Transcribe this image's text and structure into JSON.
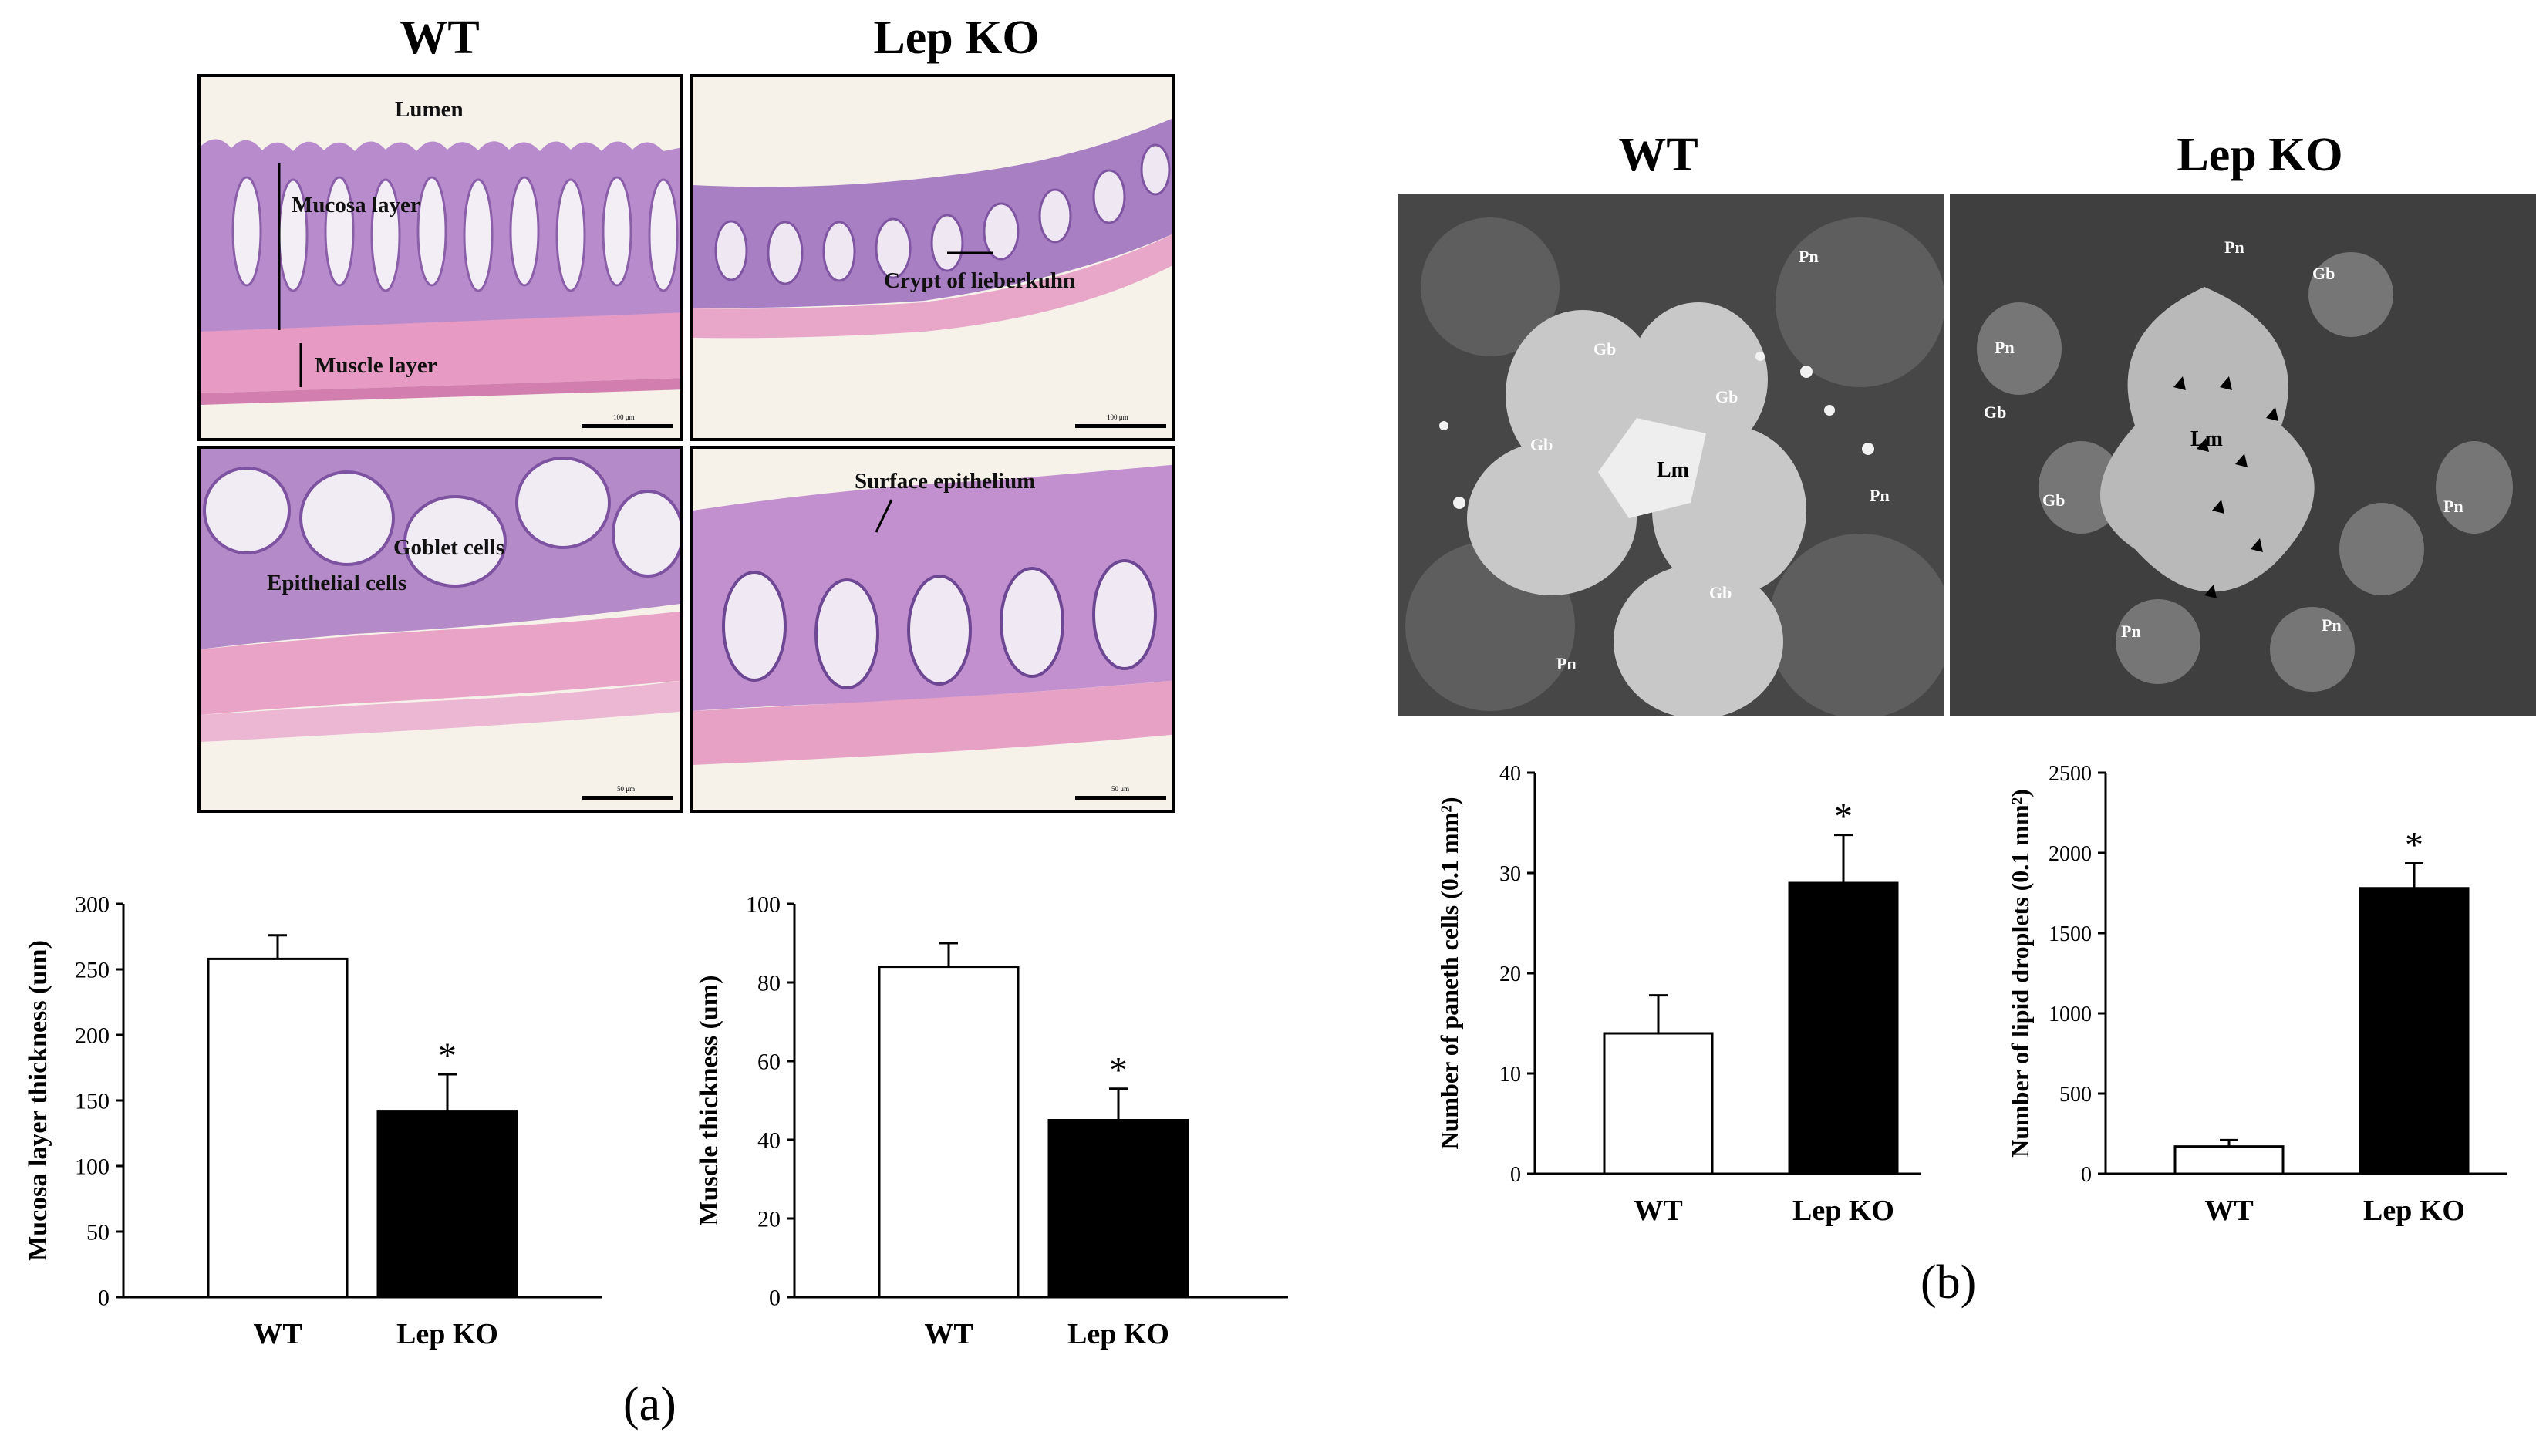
{
  "panel_a": {
    "letter": "(a)",
    "headings": {
      "wt": "WT",
      "lep": "Lep KO"
    },
    "micrographs": {
      "wt_top": {
        "labels": [
          "Lumen",
          "Mucosa layer",
          "Muscle layer"
        ],
        "scale": "100 μm"
      },
      "lep_top": {
        "labels": [
          "Crypt of lieberkuhn"
        ],
        "scale": "100 μm"
      },
      "wt_bottom": {
        "labels": [
          "Goblet cells",
          "Epithelial cells"
        ],
        "scale": "50 μm"
      },
      "lep_bottom": {
        "labels": [
          "Surface epithelium"
        ],
        "scale": "50 μm"
      }
    }
  },
  "panel_b": {
    "letter": "(b)",
    "headings": {
      "wt": "WT",
      "lep": "Lep KO"
    },
    "em_labels": {
      "wt": [
        "Pn",
        "Gb",
        "Gb",
        "Gb",
        "Lm",
        "Pn",
        "Gb",
        "Pn"
      ],
      "lep": [
        "Pn",
        "Gb",
        "Pn",
        "Gb",
        "Lm",
        "Gb",
        "Pn",
        "Pn",
        "Pn"
      ]
    }
  },
  "colors": {
    "wt_bar": "#ffffff",
    "lep_bar": "#000000",
    "he_bg": "#f6f2ea",
    "he_stain": "#9b6fb8",
    "em_bg": "#4a4a4a"
  },
  "chart_data": [
    {
      "type": "bar",
      "categories": [
        "WT",
        "Lep KO"
      ],
      "values": [
        258,
        142
      ],
      "errors": [
        18,
        28
      ],
      "significance": [
        "",
        "*"
      ],
      "ylabel": "Mucosa layer thickness (um)",
      "ylim": [
        0,
        300
      ],
      "yticks": [
        0,
        50,
        100,
        150,
        200,
        250,
        300
      ]
    },
    {
      "type": "bar",
      "categories": [
        "WT",
        "Lep KO"
      ],
      "values": [
        84,
        45
      ],
      "errors": [
        6,
        8
      ],
      "significance": [
        "",
        "*"
      ],
      "ylabel": "Muscle thickness (um)",
      "ylim": [
        0,
        100
      ],
      "yticks": [
        0,
        20,
        40,
        60,
        80,
        100
      ]
    },
    {
      "type": "bar",
      "categories": [
        "WT",
        "Lep KO"
      ],
      "values": [
        14,
        29
      ],
      "errors": [
        3.8,
        4.8
      ],
      "significance": [
        "",
        "*"
      ],
      "ylabel": "Number of paneth cells (0.1 mm²)",
      "ylim": [
        0,
        40
      ],
      "yticks": [
        0,
        10,
        20,
        30,
        40
      ]
    },
    {
      "type": "bar",
      "categories": [
        "WT",
        "Lep KO"
      ],
      "values": [
        170,
        1780
      ],
      "errors": [
        40,
        155
      ],
      "significance": [
        "",
        "*"
      ],
      "ylabel": "Number of lipid droplets (0.1 mm²)",
      "ylim": [
        0,
        2500
      ],
      "yticks": [
        0,
        500,
        1000,
        1500,
        2000,
        2500
      ]
    }
  ]
}
